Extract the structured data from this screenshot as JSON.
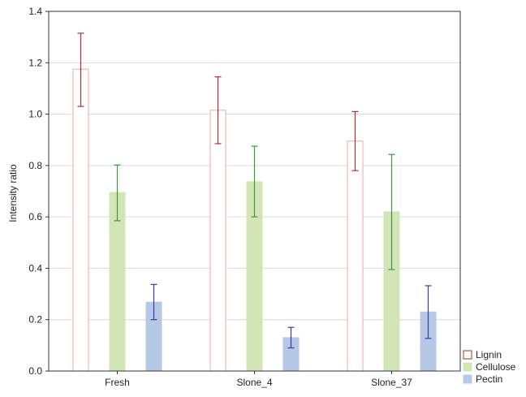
{
  "chart_data": {
    "type": "bar",
    "title": "",
    "xlabel": "",
    "ylabel": "Intensity ratio",
    "ylim": [
      0,
      1.4
    ],
    "yticks": [
      0.0,
      0.2,
      0.4,
      0.6,
      0.8,
      1.0,
      1.2,
      1.4
    ],
    "ytick_labels": [
      "0.0",
      "0.2",
      "0.4",
      "0.6",
      "0.8",
      "1.0",
      "1.2",
      "1.4"
    ],
    "categories": [
      "Fresh",
      "Slone_4",
      "Slone_37"
    ],
    "grid": true,
    "legend_position": "bottom-right",
    "series": [
      {
        "name": "Lignin",
        "values": [
          1.175,
          1.015,
          0.895
        ],
        "err_low": [
          1.03,
          0.885,
          0.78
        ],
        "err_high": [
          1.315,
          1.145,
          1.01
        ],
        "fill": "#ffffff",
        "stroke": "#e8a8a8",
        "error_color": "#a83232"
      },
      {
        "name": "Cellulose",
        "values": [
          0.695,
          0.737,
          0.62
        ],
        "err_low": [
          0.585,
          0.6,
          0.395
        ],
        "err_high": [
          0.802,
          0.875,
          0.843
        ],
        "fill": "#d3e4b7",
        "stroke": "#d3e4b7",
        "error_color": "#3a9a3a"
      },
      {
        "name": "Pectin",
        "values": [
          0.268,
          0.13,
          0.23
        ],
        "err_low": [
          0.2,
          0.09,
          0.127
        ],
        "err_high": [
          0.337,
          0.17,
          0.332
        ],
        "fill": "#b5c9e6",
        "stroke": "#b5c9e6",
        "error_color": "#3a3aa0"
      }
    ]
  }
}
